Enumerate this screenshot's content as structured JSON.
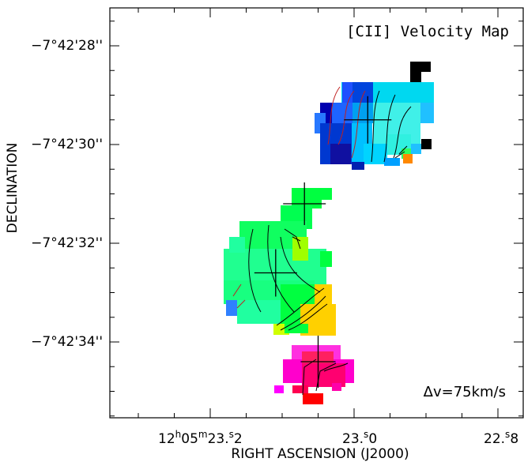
{
  "chart_data": {
    "type": "heatmap",
    "title": "[CII] Velocity Map",
    "annotation": "Δv=75km/s",
    "xlabel": "RIGHT ASCENSION (J2000)",
    "ylabel": "DECLINATION",
    "x_ticks": [
      {
        "label": "12h05m23.2s",
        "value_sec": 23.2
      },
      {
        "label": "23.0s",
        "value_sec": 23.0
      },
      {
        "label": "22.8",
        "value_sec": 22.8
      }
    ],
    "y_ticks": [
      {
        "label": "−7°42'28''",
        "value_arcsec": 28
      },
      {
        "label": "−7°42'30''",
        "value_arcsec": 30
      },
      {
        "label": "−7°42'32''",
        "value_arcsec": 32
      },
      {
        "label": "−7°42'34''",
        "value_arcsec": 34
      }
    ],
    "xlim_ra_sec": [
      23.335,
      22.775
    ],
    "ylim_dec_arcsec": [
      26.9,
      35.7
    ],
    "crosses": [
      {
        "ra_sec": 22.981,
        "dec_arcsec": 29.5
      },
      {
        "ra_sec": 23.069,
        "dec_arcsec": 31.2
      },
      {
        "ra_sec": 23.109,
        "dec_arcsec": 32.6
      },
      {
        "ra_sec": 23.05,
        "dec_arcsec": 34.4
      }
    ],
    "regions": [
      {
        "name": "northern clump",
        "dominant_colors": [
          "#0000cc",
          "#1e64ff",
          "#00c8ff",
          "#40ffe8"
        ]
      },
      {
        "name": "central clump",
        "dominant_colors": [
          "#00ff40",
          "#20ff90",
          "#ffd000"
        ]
      },
      {
        "name": "southern clump",
        "dominant_colors": [
          "#ff00cc",
          "#ff0070",
          "#ff0000"
        ]
      }
    ],
    "grid": false
  }
}
